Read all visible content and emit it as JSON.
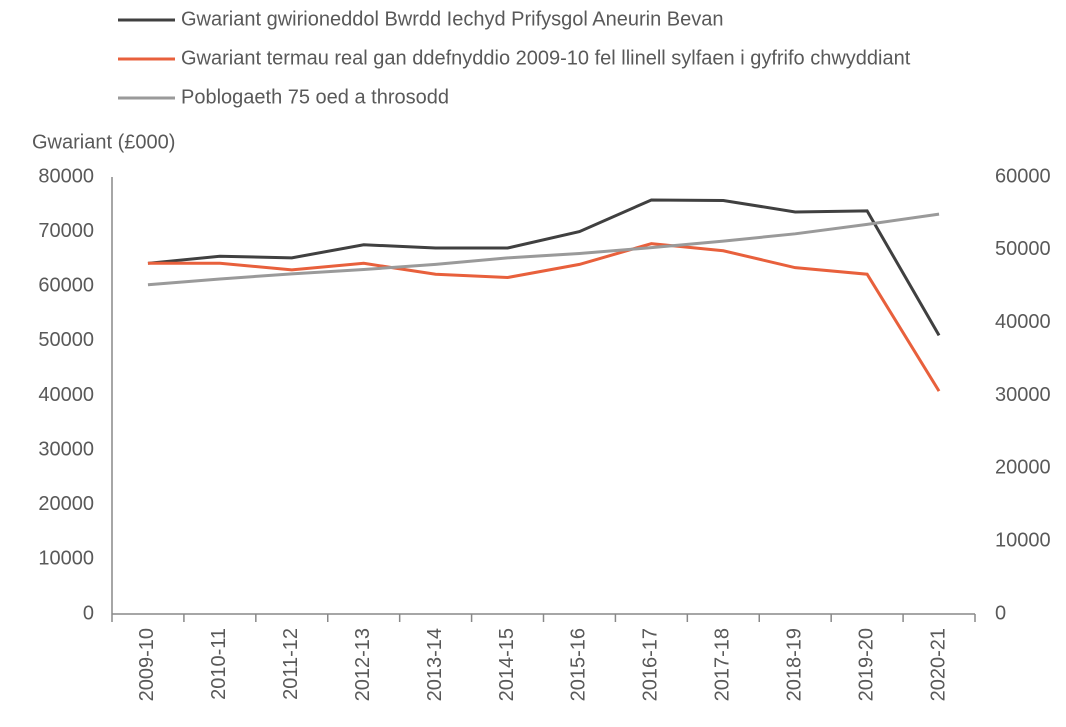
{
  "chart_data": {
    "type": "line",
    "ylabel": "Gwariant (£000)",
    "categories": [
      "2009-10",
      "2010-11",
      "2011-12",
      "2012-13",
      "2013-14",
      "2014-15",
      "2015-16",
      "2016-17",
      "2017-18",
      "2018-19",
      "2019-20",
      "2020-21"
    ],
    "series": [
      {
        "name": "Gwariant gwirioneddol Bwrdd Iechyd Prifysgol Aneurin Bevan",
        "color": "#404040",
        "values": [
          64200,
          65500,
          65200,
          67600,
          67000,
          67000,
          70000,
          75800,
          75700,
          73600,
          73800,
          51000
        ]
      },
      {
        "name": "Gwariant termau real gan ddefnyddio 2009-10 fel llinell sylfaen i gyfrifo chwyddiant",
        "color": "#e8603c",
        "values": [
          64200,
          64200,
          63000,
          64200,
          62200,
          61600,
          64000,
          67800,
          66500,
          63400,
          62200,
          40800
        ]
      },
      {
        "name": "Poblogaeth 75 oed a throsodd",
        "color": "#9a9a9a",
        "axis": "y2",
        "values": [
          45200,
          46000,
          46700,
          47300,
          48000,
          48900,
          49500,
          50300,
          51200,
          52200,
          53500,
          54900
        ]
      }
    ],
    "ylim": [
      0,
      80000
    ],
    "yticks": [
      0,
      10000,
      20000,
      30000,
      40000,
      50000,
      60000,
      70000,
      80000
    ],
    "y2lim": [
      0,
      60000
    ],
    "y2ticks": [
      0,
      10000,
      20000,
      30000,
      40000,
      50000,
      60000
    ],
    "grid": false
  }
}
